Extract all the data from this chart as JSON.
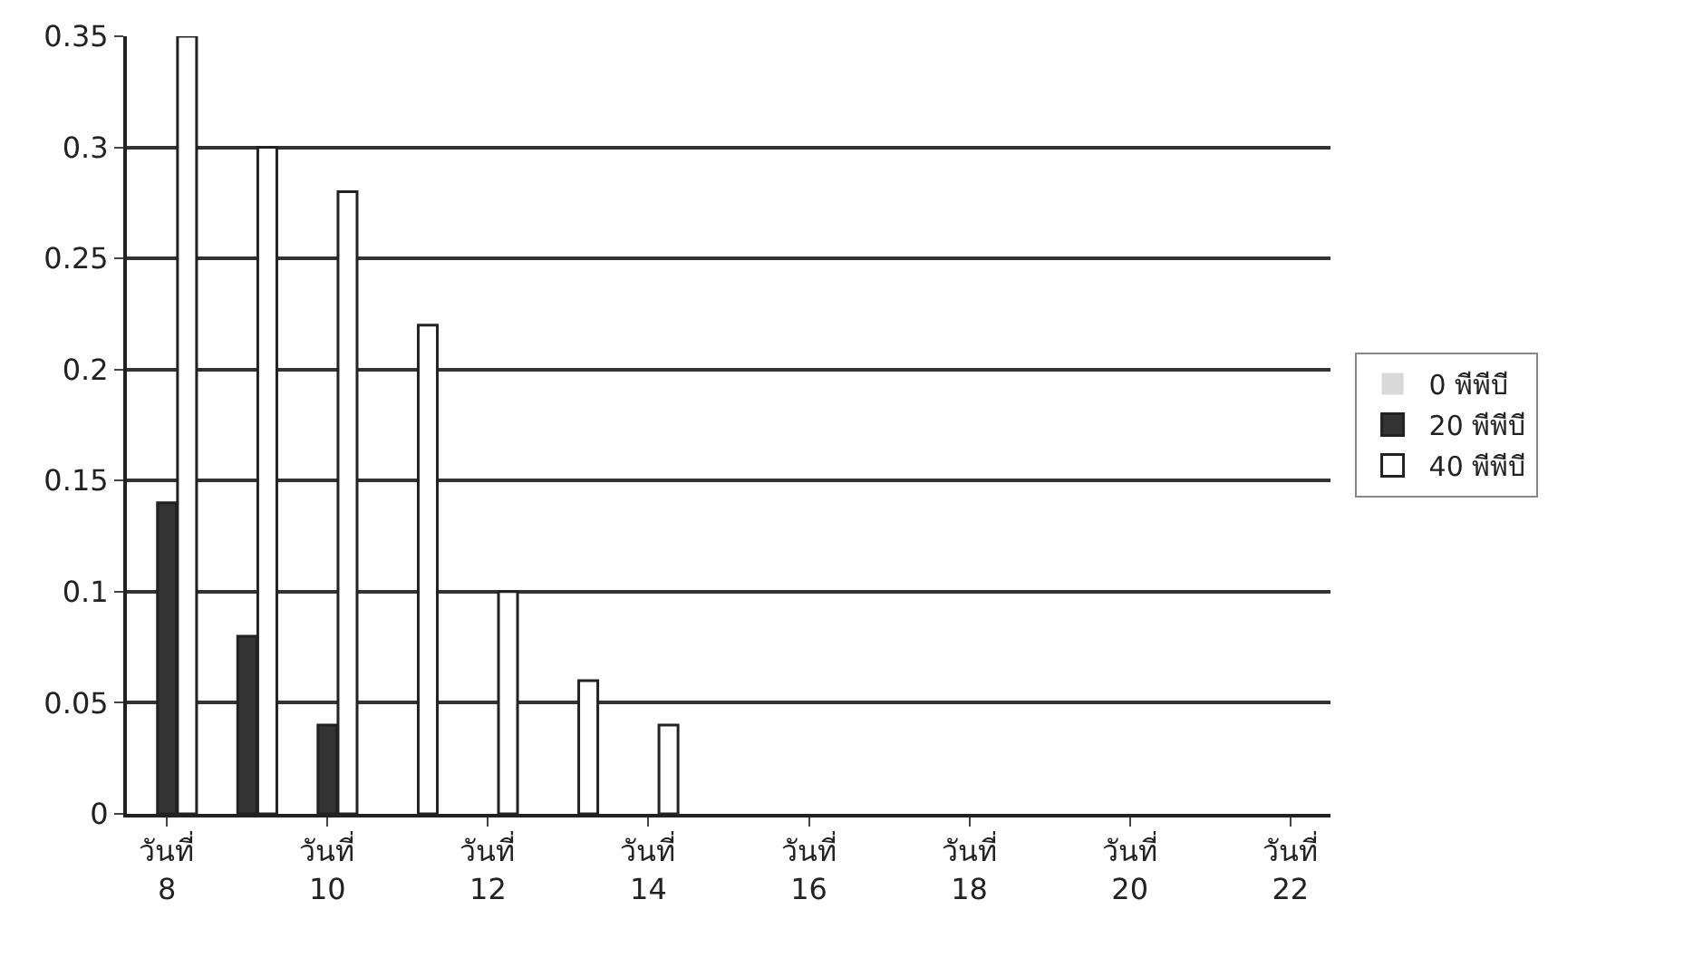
{
  "chart_data": {
    "type": "bar",
    "categories": [
      "วันที่ 8",
      null,
      "วันที่ 10",
      null,
      "วันที่ 12",
      null,
      "วันที่ 14",
      null,
      "วันที่ 16",
      null,
      "วันที่ 18",
      null,
      "วันที่ 20",
      null,
      "วันที่ 22"
    ],
    "series": [
      {
        "name": "0 พีพีบี",
        "color": "#d9d9d9",
        "values": [
          0,
          0,
          0,
          0,
          0,
          0,
          0,
          0,
          0,
          0,
          0,
          0,
          0,
          0,
          0
        ]
      },
      {
        "name": "20 พีพีบี",
        "color": "#333333",
        "values": [
          0.14,
          0.08,
          0.04,
          0,
          0,
          0,
          0,
          0,
          0,
          0,
          0,
          0,
          0,
          0,
          0
        ]
      },
      {
        "name": "40 พีพีบี",
        "color": "#ffffff",
        "values": [
          0.35,
          0.3,
          0.28,
          0.22,
          0.1,
          0.06,
          0.04,
          0,
          0,
          0,
          0,
          0,
          0,
          0,
          0
        ]
      }
    ],
    "ylim": [
      0,
      0.35
    ],
    "yticks": [
      0,
      0.05,
      0.1,
      0.15,
      0.2,
      0.25,
      0.3,
      0.35
    ],
    "grid": "y",
    "legend": "right"
  }
}
